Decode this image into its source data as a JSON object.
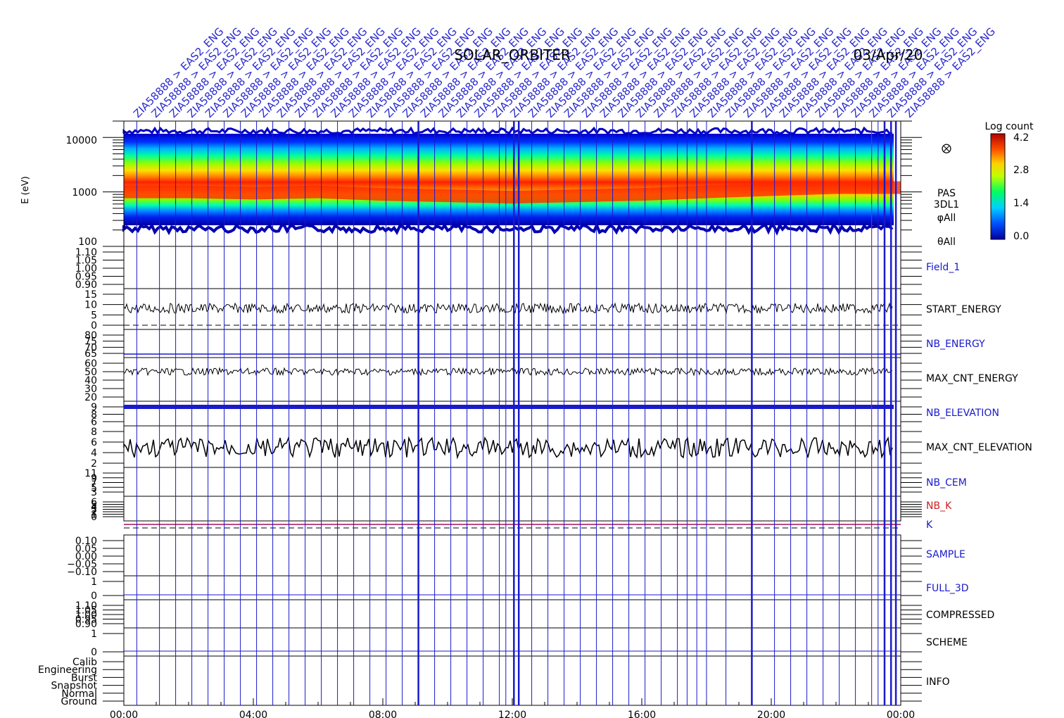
{
  "header": {
    "title": "SOLAR_ORBITER",
    "date": "03/Apr/20",
    "diag_labels": [
      "ZIA58888 > EAS2_ENG"
    ]
  },
  "spectrogram": {
    "ylabel": "E (eV)",
    "yticks": [
      "10000",
      "1000",
      "100"
    ],
    "side_labels": [
      "PAS",
      "3DL1",
      "φAll",
      "θAll"
    ],
    "colorbar_title": "Log count",
    "colorbar_ticks": [
      "4.2",
      "2.8",
      "1.4",
      "0.0"
    ]
  },
  "panels": [
    {
      "name": "Field_1",
      "color": "#1a1acc",
      "ticks": [
        "1.10",
        "1.05",
        "1.00",
        "0.95",
        "0.90"
      ]
    },
    {
      "name": "START_ENERGY",
      "color": "#000000",
      "ticks": [
        "15",
        "10",
        "5",
        "0"
      ]
    },
    {
      "name": "NB_ENERGY",
      "color": "#1a1acc",
      "ticks": [
        "80",
        "75",
        "70",
        "65"
      ]
    },
    {
      "name": "MAX_CNT_ENERGY",
      "color": "#000000",
      "ticks": [
        "60",
        "50",
        "40",
        "30",
        "20"
      ]
    },
    {
      "name": "NB_ELEVATION",
      "color": "#1a1acc",
      "ticks": [
        "9",
        "8",
        "6"
      ]
    },
    {
      "name": "MAX_CNT_ELEVATION",
      "color": "#000000",
      "ticks": [
        "8",
        "6",
        "4",
        "2"
      ]
    },
    {
      "name": "NB_CEM",
      "color": "#1a1acc",
      "ticks": [
        "11",
        "9",
        "7",
        "5",
        "3"
      ]
    },
    {
      "name": "NB_K",
      "color": "#cc2020",
      "ticks": [
        "6",
        "5",
        "4",
        "3",
        "2",
        "1",
        "0"
      ]
    },
    {
      "name": "K",
      "color": "#1a1acc",
      "ticks": []
    },
    {
      "name": "SAMPLE",
      "color": "#1a1acc",
      "ticks": [
        "0.10",
        "0.05",
        "0.00",
        "−0.05",
        "−0.10"
      ]
    },
    {
      "name": "FULL_3D",
      "color": "#1a1acc",
      "ticks": [
        "1",
        "0"
      ]
    },
    {
      "name": "COMPRESSED",
      "color": "#000000",
      "ticks": [
        "1.10",
        "1.05",
        "1.00",
        "0.95",
        "0.90"
      ]
    },
    {
      "name": "SCHEME",
      "color": "#000000",
      "ticks": [
        "1",
        "0"
      ]
    },
    {
      "name": "INFO",
      "color": "#000000",
      "ticks": [
        "Calib",
        "Engineering",
        "Burst",
        "Snapshot",
        "Normal",
        "Ground"
      ]
    }
  ],
  "time_axis": [
    "00:00",
    "04:00",
    "08:00",
    "12:00",
    "16:00",
    "20:00",
    "00:00"
  ],
  "chart_data": {
    "type": "heatmap",
    "x_range_hours": [
      0,
      24
    ],
    "y_range_eV": [
      100,
      20000
    ],
    "y_scale": "log",
    "color_range_log_count": [
      0.0,
      4.2
    ],
    "peak_energy_eV": [
      1000,
      1000,
      950,
      1000,
      900,
      850,
      800,
      850,
      900,
      1000,
      1100,
      1200,
      1200
    ],
    "peak_energy_x_hours": [
      0,
      2,
      4,
      6,
      8,
      10,
      12,
      14,
      16,
      18,
      20,
      22,
      24
    ],
    "series": [
      {
        "name": "START_ENERGY",
        "mean": 9,
        "range": [
          0,
          15
        ]
      },
      {
        "name": "MAX_CNT_ENERGY",
        "mean": 48,
        "range": [
          20,
          60
        ]
      },
      {
        "name": "NB_ELEVATION",
        "mean": 9,
        "range": [
          6,
          9
        ]
      },
      {
        "name": "MAX_CNT_ELEVATION",
        "mean": 4.5,
        "range": [
          2,
          8
        ]
      },
      {
        "name": "K",
        "mean": 0.9,
        "range": [
          0,
          6
        ]
      }
    ],
    "legend_position": "right"
  }
}
